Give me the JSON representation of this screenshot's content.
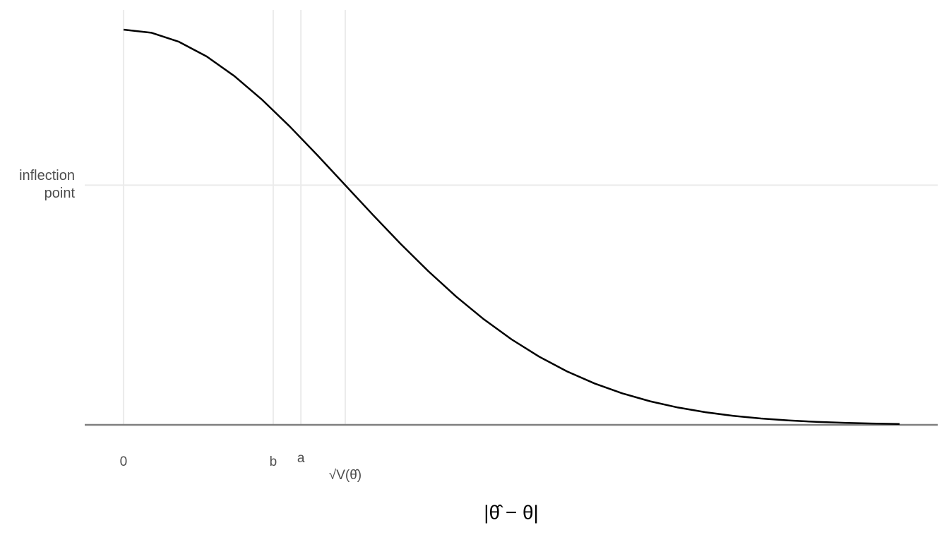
{
  "chart_data": {
    "type": "line",
    "x": [
      0,
      0.125,
      0.25,
      0.375,
      0.5,
      0.625,
      0.75,
      0.875,
      1,
      1.125,
      1.25,
      1.375,
      1.5,
      1.625,
      1.75,
      1.875,
      2,
      2.125,
      2.25,
      2.375,
      2.5,
      2.625,
      2.75,
      2.875,
      3,
      3.125,
      3.25,
      3.375,
      3.5
    ],
    "series": [
      {
        "color": "#000000",
        "values": [
          1,
          0.9922,
          0.9692,
          0.9321,
          0.8825,
          0.8226,
          0.7548,
          0.6819,
          0.6065,
          0.5311,
          0.4578,
          0.3886,
          0.3247,
          0.2671,
          0.2163,
          0.1724,
          0.1353,
          0.1046,
          0.0796,
          0.0596,
          0.0439,
          0.0319,
          0.0228,
          0.016,
          0.0111,
          0.0076,
          0.0051,
          0.0034,
          0.0022
        ]
      }
    ],
    "xlim": [
      -0.175,
      3.672
    ],
    "ylim": [
      0,
      1.05
    ],
    "xticks": [
      0,
      {
        "value": 0.675,
        "label": "b"
      },
      {
        "value": 0.8,
        "label": "a"
      },
      {
        "value": 1,
        "label": "√V(θ̂)"
      }
    ],
    "yticks": [
      {
        "value": 0.6065,
        "label": "inflection point"
      }
    ],
    "xlabel": "|θ̂ − θ|",
    "grid": true
  }
}
